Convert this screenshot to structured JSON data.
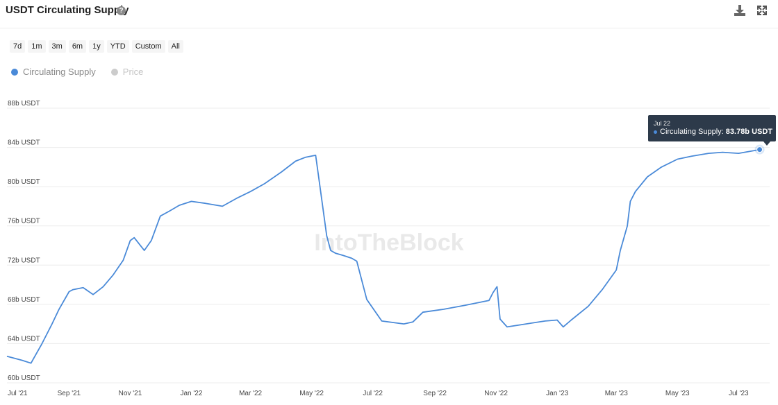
{
  "header": {
    "title": "USDT Circulating Supply",
    "help_icon": "question-circle-icon",
    "download_icon": "download-icon",
    "expand_icon": "fullscreen-icon"
  },
  "ranges": [
    "7d",
    "1m",
    "3m",
    "6m",
    "1y",
    "YTD",
    "Custom",
    "All"
  ],
  "legend": [
    {
      "label": "Circulating Supply",
      "color": "#4a8ad8",
      "active": true
    },
    {
      "label": "Price",
      "color": "#cccccc",
      "active": false
    }
  ],
  "watermark": "IntoTheBlock",
  "tooltip": {
    "date": "Jul 22",
    "series": "Circulating Supply:",
    "value": "83.78b USDT"
  },
  "chart_data": {
    "type": "line",
    "title": "USDT Circulating Supply",
    "xlabel": "",
    "ylabel": "",
    "ylim": [
      60,
      88
    ],
    "y_ticks": [
      60,
      64,
      68,
      72,
      76,
      80,
      84,
      88
    ],
    "y_tick_labels": [
      "60b USDT",
      "64b USDT",
      "68b USDT",
      "72b USDT",
      "76b USDT",
      "80b USDT",
      "84b USDT",
      "88b USDT"
    ],
    "x_ticks": [
      "2021-07-01",
      "2021-09-01",
      "2021-11-01",
      "2022-01-01",
      "2022-03-01",
      "2022-05-01",
      "2022-07-01",
      "2022-09-01",
      "2022-11-01",
      "2023-01-01",
      "2023-03-01",
      "2023-05-01",
      "2023-07-01"
    ],
    "x_tick_labels": [
      "Jul '21",
      "Sep '21",
      "Nov '21",
      "Jan '22",
      "Mar '22",
      "May '22",
      "Jul '22",
      "Sep '22",
      "Nov '22",
      "Jan '23",
      "Mar '23",
      "May '23",
      "Jul '23"
    ],
    "xlim": [
      "2021-07-01",
      "2023-08-01"
    ],
    "grid": true,
    "legend_position": "top-left",
    "series": [
      {
        "name": "Circulating Supply",
        "color": "#4a8ad8",
        "x": [
          "2021-07-01",
          "2021-07-16",
          "2021-07-25",
          "2021-08-05",
          "2021-08-15",
          "2021-08-22",
          "2021-09-01",
          "2021-09-05",
          "2021-09-15",
          "2021-09-25",
          "2021-10-05",
          "2021-10-15",
          "2021-10-25",
          "2021-11-01",
          "2021-11-05",
          "2021-11-15",
          "2021-11-22",
          "2021-12-01",
          "2021-12-10",
          "2021-12-20",
          "2022-01-01",
          "2022-01-15",
          "2022-02-01",
          "2022-02-15",
          "2022-03-01",
          "2022-03-15",
          "2022-04-01",
          "2022-04-15",
          "2022-04-25",
          "2022-05-05",
          "2022-05-08",
          "2022-05-12",
          "2022-05-16",
          "2022-05-20",
          "2022-05-25",
          "2022-06-01",
          "2022-06-10",
          "2022-06-15",
          "2022-06-25",
          "2022-07-10",
          "2022-08-01",
          "2022-08-10",
          "2022-08-20",
          "2022-09-10",
          "2022-10-01",
          "2022-10-25",
          "2022-10-29",
          "2022-11-02",
          "2022-11-05",
          "2022-11-12",
          "2022-12-01",
          "2022-12-20",
          "2023-01-01",
          "2023-01-07",
          "2023-01-15",
          "2023-02-01",
          "2023-02-15",
          "2023-03-01",
          "2023-03-05",
          "2023-03-12",
          "2023-03-15",
          "2023-03-20",
          "2023-04-01",
          "2023-04-15",
          "2023-05-01",
          "2023-05-15",
          "2023-06-01",
          "2023-06-15",
          "2023-07-01",
          "2023-07-22"
        ],
        "values": [
          62.7,
          62.3,
          62.0,
          64.0,
          66.0,
          67.5,
          69.3,
          69.5,
          69.7,
          69.0,
          69.8,
          71.0,
          72.5,
          74.5,
          74.8,
          73.5,
          74.5,
          77.0,
          77.5,
          78.1,
          78.5,
          78.3,
          78.0,
          78.8,
          79.5,
          80.3,
          81.5,
          82.6,
          83.0,
          83.2,
          81.0,
          78.0,
          75.0,
          73.5,
          73.2,
          73.0,
          72.7,
          72.4,
          68.5,
          66.3,
          66.0,
          66.2,
          67.2,
          67.5,
          67.9,
          68.4,
          69.2,
          69.8,
          66.5,
          65.7,
          66.0,
          66.3,
          66.4,
          65.7,
          66.4,
          67.8,
          69.5,
          71.5,
          73.5,
          76.0,
          78.5,
          79.5,
          81.0,
          82.0,
          82.8,
          83.1,
          83.4,
          83.5,
          83.4,
          83.78
        ]
      }
    ]
  }
}
